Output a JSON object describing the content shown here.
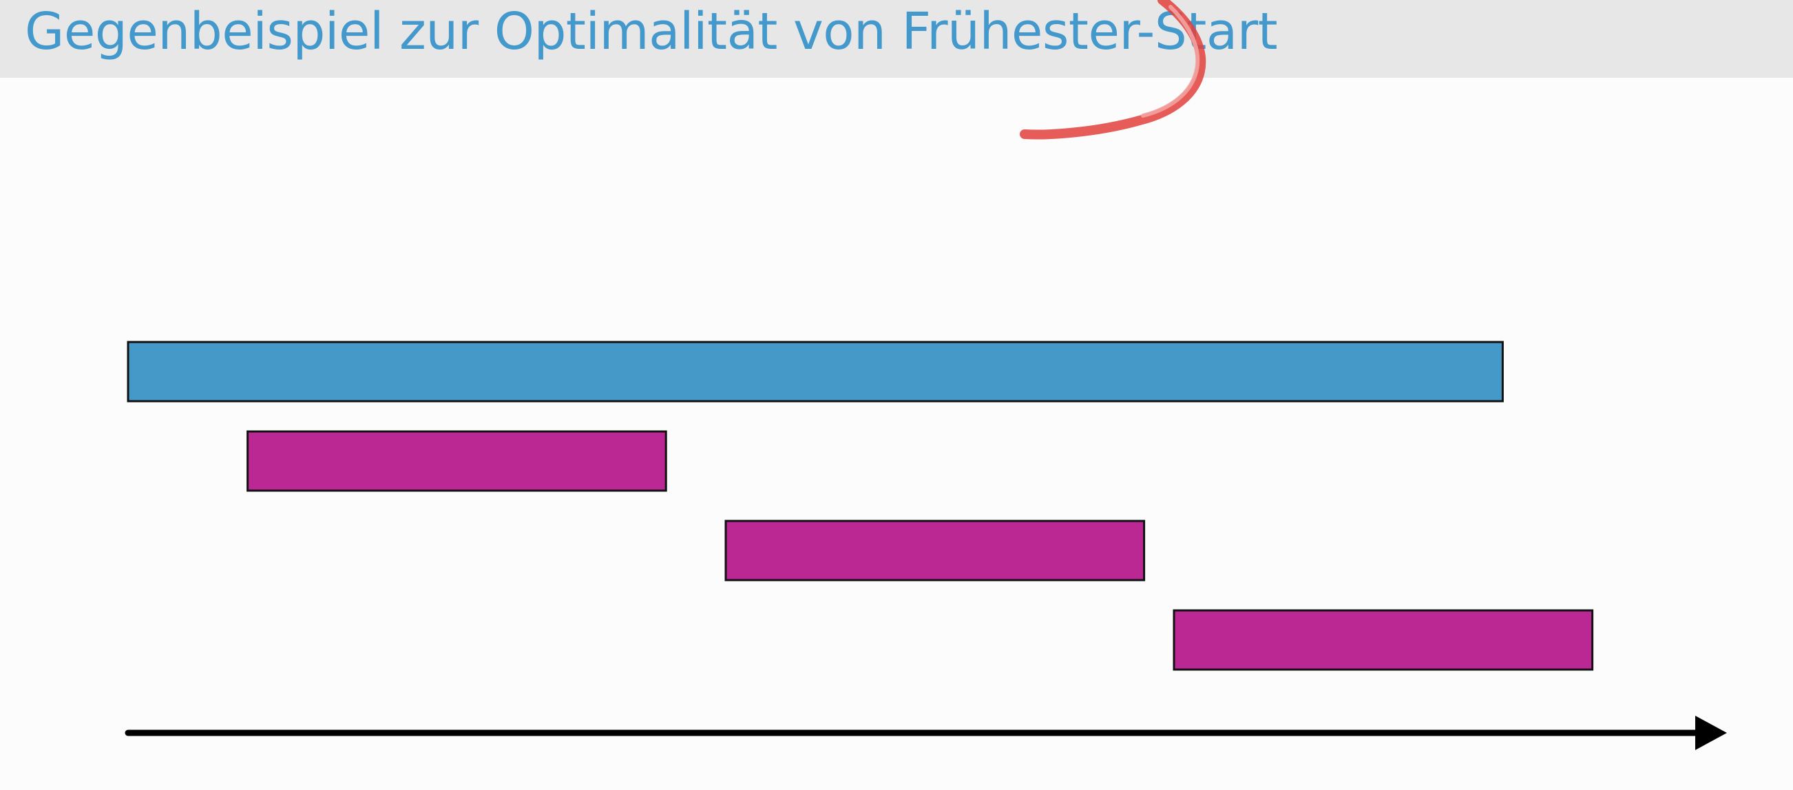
{
  "slide": {
    "title": "Gegenbeispiel zur Optimalität von Frühester-Start"
  },
  "colors": {
    "title_text": "#4499cc",
    "title_bar": "#e7e7e7",
    "background": "#fcfcfc",
    "long_interval": "#4499c9",
    "short_interval": "#bb2893",
    "outline": "#111111",
    "axis": "#000000",
    "annotation_pen": "#e0403c"
  },
  "intervals": [
    {
      "kind": "long",
      "start": 0.0,
      "end": 11.5
    },
    {
      "kind": "short",
      "start": 1.0,
      "end": 4.5
    },
    {
      "kind": "short",
      "start": 5.0,
      "end": 8.5
    },
    {
      "kind": "short",
      "start": 8.75,
      "end": 12.25
    }
  ],
  "timeline": {
    "min": 0,
    "max": 13.5
  },
  "annotations": [
    {
      "type": "pen-stroke",
      "icon": "red-pen-arc-stroke"
    }
  ]
}
